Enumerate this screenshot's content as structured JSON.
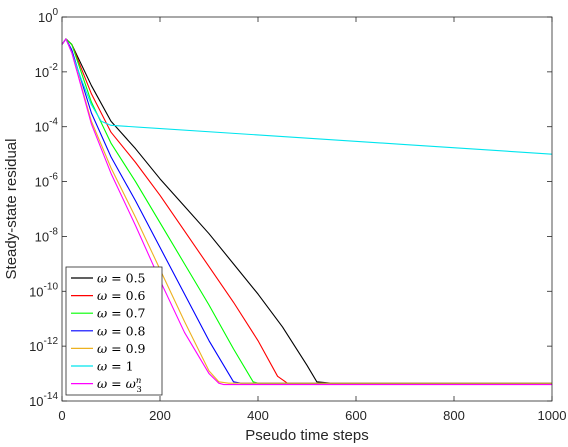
{
  "chart_data": {
    "type": "line",
    "title": "",
    "xlabel": "Pseudo time steps",
    "ylabel": "Steady-state residual",
    "xlim": [
      0,
      1000
    ],
    "ylim_log10": [
      -14,
      0
    ],
    "y_scale": "log",
    "grid": false,
    "legend_position": "bottom-left",
    "x_ticks": [
      "0",
      "200",
      "400",
      "600",
      "800",
      "1000"
    ],
    "y_ticks": [
      {
        "base": "10",
        "exp": "0"
      },
      {
        "base": "10",
        "exp": "-2"
      },
      {
        "base": "10",
        "exp": "-4"
      },
      {
        "base": "10",
        "exp": "-6"
      },
      {
        "base": "10",
        "exp": "-8"
      },
      {
        "base": "10",
        "exp": "-10"
      },
      {
        "base": "10",
        "exp": "-12"
      },
      {
        "base": "10",
        "exp": "-14"
      }
    ],
    "series": [
      {
        "name": "ω = 0.5",
        "legend_rhs": "0.5",
        "color": "#000000",
        "x": [
          0,
          8,
          20,
          60,
          100,
          150,
          200,
          250,
          300,
          350,
          400,
          450,
          500,
          520,
          550,
          1000
        ],
        "log10_y": [
          -1.0,
          -0.8,
          -1.0,
          -2.5,
          -3.8,
          -4.8,
          -5.9,
          -6.9,
          -7.9,
          -9.0,
          -10.1,
          -11.3,
          -12.7,
          -13.3,
          -13.35,
          -13.35
        ]
      },
      {
        "name": "ω = 0.6",
        "legend_rhs": "0.6",
        "color": "#ff0000",
        "x": [
          0,
          8,
          20,
          60,
          100,
          150,
          200,
          250,
          300,
          350,
          400,
          440,
          460,
          1000
        ],
        "log10_y": [
          -1.0,
          -0.8,
          -1.0,
          -2.8,
          -4.2,
          -5.3,
          -6.5,
          -7.8,
          -9.1,
          -10.4,
          -11.8,
          -13.1,
          -13.35,
          -13.35
        ]
      },
      {
        "name": "ω = 0.7",
        "legend_rhs": "0.7",
        "color": "#00ff00",
        "x": [
          0,
          8,
          20,
          60,
          100,
          150,
          200,
          250,
          300,
          350,
          390,
          400,
          1000
        ],
        "log10_y": [
          -1.0,
          -0.8,
          -1.0,
          -3.1,
          -4.6,
          -6.0,
          -7.5,
          -9.0,
          -10.5,
          -12.1,
          -13.3,
          -13.35,
          -13.35
        ]
      },
      {
        "name": "ω = 0.8",
        "legend_rhs": "0.8",
        "color": "#0000ff",
        "x": [
          0,
          8,
          20,
          60,
          100,
          150,
          200,
          250,
          300,
          350,
          365,
          1000
        ],
        "log10_y": [
          -1.0,
          -0.8,
          -1.2,
          -3.5,
          -5.1,
          -6.7,
          -8.4,
          -10.1,
          -11.8,
          -13.3,
          -13.35,
          -13.35
        ]
      },
      {
        "name": "ω = 0.9",
        "legend_rhs": "0.9",
        "color": "#edb120",
        "x": [
          0,
          8,
          20,
          60,
          100,
          150,
          200,
          250,
          300,
          320,
          340,
          1000
        ],
        "log10_y": [
          -1.0,
          -0.8,
          -1.3,
          -3.8,
          -5.5,
          -7.3,
          -9.2,
          -11.1,
          -12.9,
          -13.3,
          -13.35,
          -13.35
        ]
      },
      {
        "name": "ω = 1",
        "legend_rhs": "1",
        "color": "#00e5ee",
        "x": [
          0,
          8,
          20,
          40,
          60,
          80,
          100,
          400,
          700,
          1000
        ],
        "log10_y": [
          -1.0,
          -0.8,
          -1.3,
          -2.3,
          -3.2,
          -3.8,
          -3.95,
          -4.3,
          -4.65,
          -5.0
        ]
      },
      {
        "name": "ω = ω_3^n",
        "legend_rhs": "ω3n",
        "color": "#ff00ff",
        "x": [
          0,
          8,
          20,
          60,
          100,
          150,
          200,
          250,
          300,
          320,
          330,
          1000
        ],
        "log10_y": [
          -1.0,
          -0.8,
          -1.3,
          -3.9,
          -5.7,
          -7.6,
          -9.6,
          -11.5,
          -13.0,
          -13.35,
          -13.4,
          -13.4
        ]
      }
    ]
  }
}
